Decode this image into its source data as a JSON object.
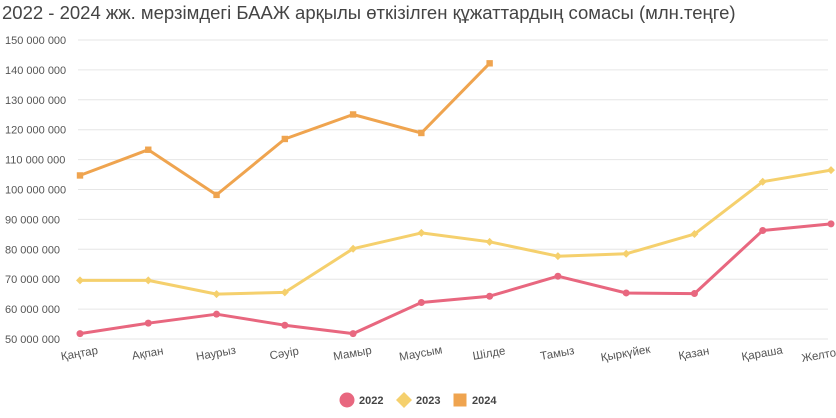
{
  "chart_data": {
    "type": "line",
    "title": "2022 - 2024 жж. мерзімдегі БААЖ арқылы өткізілген құжаттардың сомасы (млн.теңге)",
    "xlabel": "",
    "ylabel": "",
    "categories": [
      "Қаңтар",
      "Ақпан",
      "Наурыз",
      "Сәуір",
      "Мамыр",
      "Маусым",
      "Шілде",
      "Тамыз",
      "Қыркүйек",
      "Қазан",
      "Қараша",
      "Желтоқсан"
    ],
    "ylim": [
      50000000,
      150000000
    ],
    "yticks": [
      "50 000 000",
      "60 000 000",
      "70 000 000",
      "80 000 000",
      "90 000 000",
      "100 000 000",
      "110 000 000",
      "120 000 000",
      "130 000 000",
      "140 000 000",
      "150 000 000"
    ],
    "grid": true,
    "legend_position": "bottom",
    "series": [
      {
        "name": "2022",
        "color": "#e8677f",
        "marker": "circle",
        "values": [
          51800000,
          55300000,
          58300000,
          54600000,
          51800000,
          62200000,
          64300000,
          71000000,
          65400000,
          65200000,
          86300000,
          88500000
        ]
      },
      {
        "name": "2023",
        "color": "#f5d06d",
        "marker": "diamond",
        "values": [
          69600000,
          69600000,
          65000000,
          65600000,
          80200000,
          85500000,
          82500000,
          77700000,
          78500000,
          85100000,
          102600000,
          106500000
        ]
      },
      {
        "name": "2024",
        "color": "#efa44f",
        "marker": "square",
        "values": [
          104700000,
          113300000,
          98200000,
          116900000,
          125100000,
          118900000,
          142200000,
          null,
          null,
          null,
          null,
          null
        ]
      }
    ]
  }
}
